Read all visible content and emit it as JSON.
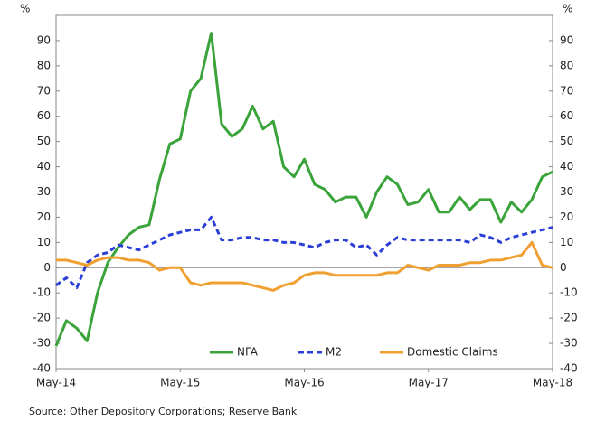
{
  "chart_data": {
    "type": "line",
    "y_label": "%",
    "y2_label": "%",
    "source": "Source: Other Depository Corporations; Reserve Bank",
    "categories": [
      "May-14",
      null,
      null,
      null,
      null,
      null,
      null,
      null,
      null,
      null,
      null,
      null,
      "May-15",
      null,
      null,
      null,
      null,
      null,
      null,
      null,
      null,
      null,
      null,
      null,
      "May-16",
      null,
      null,
      null,
      null,
      null,
      null,
      null,
      null,
      null,
      null,
      null,
      "May-17",
      null,
      null,
      null,
      null,
      null,
      null,
      null,
      null,
      null,
      null,
      null,
      "May-18"
    ],
    "series": [
      {
        "name": "NFA",
        "color": "#3aa33a",
        "dash": false,
        "values": [
          -31,
          -21,
          -24,
          -29,
          -10,
          2,
          8,
          13,
          16,
          17,
          35,
          49,
          51,
          70,
          75,
          93,
          57,
          52,
          55,
          64,
          55,
          58,
          40,
          36,
          43,
          33,
          31,
          26,
          28,
          28,
          20,
          30,
          36,
          33,
          25,
          26,
          31,
          22,
          22,
          28,
          23,
          27,
          27,
          18,
          26,
          22,
          27,
          36,
          38
        ]
      },
      {
        "name": "M2",
        "color": "#2b3fd6",
        "dash": true,
        "values": [
          -7,
          -4,
          -8,
          2,
          5,
          6,
          9,
          8,
          7,
          9,
          11,
          13,
          14,
          15,
          15,
          20,
          11,
          11,
          12,
          12,
          11,
          11,
          10,
          10,
          9,
          8,
          10,
          11,
          11,
          8,
          9,
          5,
          9,
          12,
          11,
          11,
          11,
          11,
          11,
          11,
          10,
          13,
          12,
          10,
          12,
          13,
          14,
          15,
          16
        ]
      },
      {
        "name": "Domestic Claims",
        "color": "#f0a030",
        "dash": false,
        "values": [
          3,
          3,
          2,
          1,
          3,
          4,
          4,
          3,
          3,
          2,
          -1,
          0,
          0,
          -6,
          -7,
          -6,
          -6,
          -6,
          -6,
          -7,
          -8,
          -9,
          -7,
          -6,
          -3,
          -2,
          -2,
          -3,
          -3,
          -3,
          -3,
          -3,
          -2,
          -2,
          1,
          0,
          -1,
          1,
          1,
          1,
          2,
          2,
          3,
          3,
          4,
          5,
          10,
          1,
          0
        ]
      }
    ],
    "ylim": [
      -40,
      100
    ],
    "yticks": [
      -40,
      -30,
      -20,
      -10,
      0,
      10,
      20,
      30,
      40,
      50,
      60,
      70,
      80,
      90
    ],
    "y2lim": [
      -40,
      100
    ],
    "y2ticks": [
      -40,
      -30,
      -20,
      -10,
      0,
      10,
      20,
      30,
      40,
      50,
      60,
      70,
      80,
      90
    ],
    "legend": "lower right"
  }
}
